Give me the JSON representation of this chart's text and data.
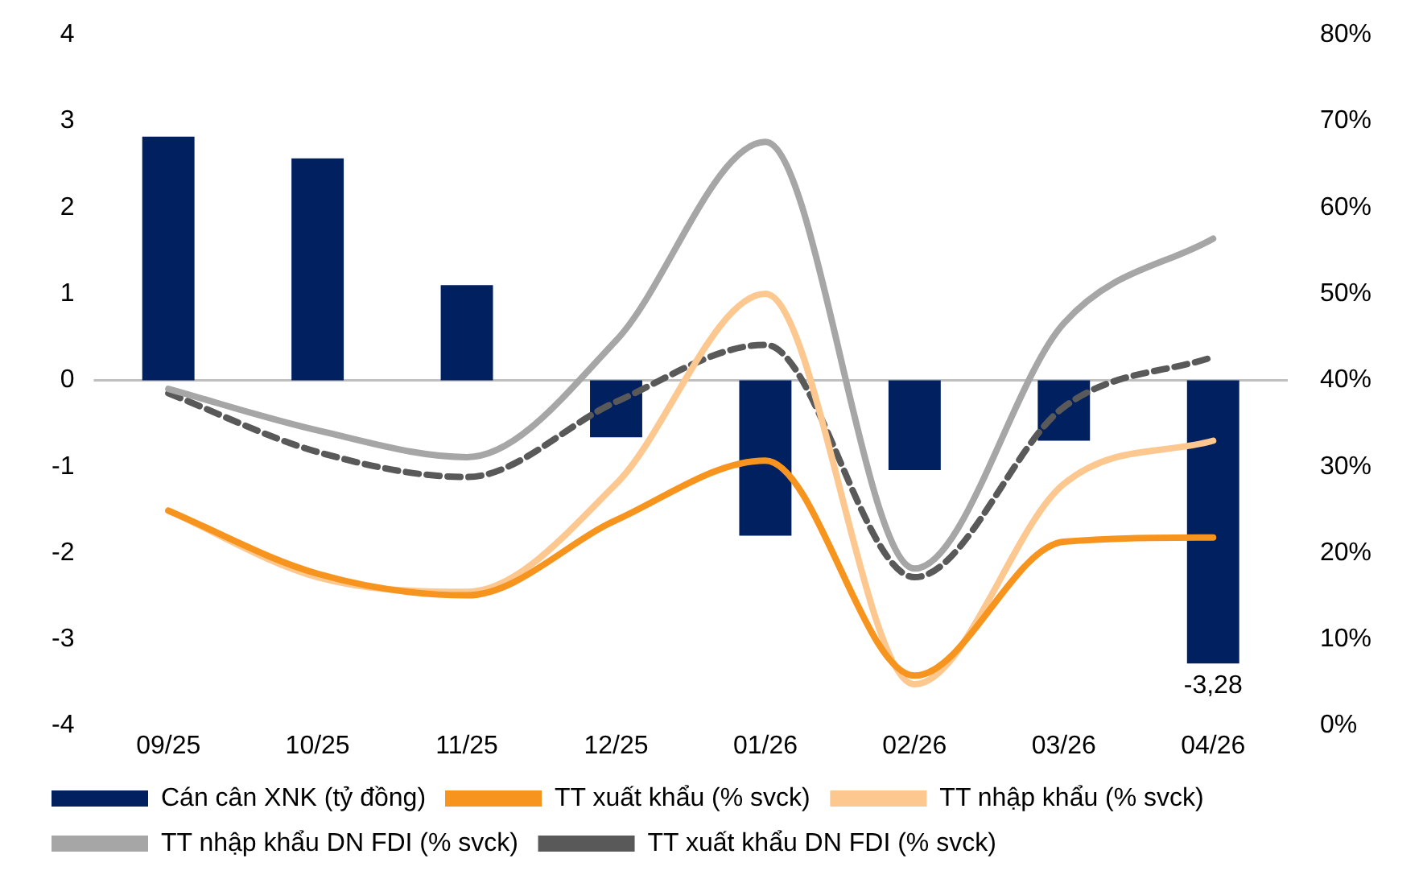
{
  "chart_data": {
    "type": "bar",
    "categories": [
      "09/25",
      "10/25",
      "11/25",
      "12/25",
      "01/26",
      "02/26",
      "03/26",
      "04/26"
    ],
    "series": [
      {
        "name": "Cán cân XNK (tỷ đồng)",
        "color": "#002060",
        "values": [
          2.82,
          2.57,
          1.1,
          -0.66,
          -1.8,
          -1.04,
          -0.7,
          -3.28
        ],
        "value_labels": [
          null,
          null,
          null,
          null,
          null,
          null,
          null,
          "-3,28"
        ]
      },
      {
        "name": "TT xuất khẩu (% svck)",
        "type": "line",
        "axis": "y2",
        "color": "#f7941d",
        "line_style": "solid",
        "values": [
          24.9,
          17.6,
          15.1,
          23.8,
          30.7,
          5.8,
          21.3,
          21.8
        ]
      },
      {
        "name": "TT nhập khẩu (% svck)",
        "type": "line",
        "axis": "y2",
        "color": "#fcc88f",
        "line_style": "solid",
        "values": [
          24.9,
          17.2,
          15.5,
          28,
          50,
          4.8,
          28,
          33
        ]
      },
      {
        "name": "TT nhập khẩu DN FDI (% svck)",
        "type": "line",
        "axis": "y2",
        "color": "#a6a6a6",
        "line_style": "solid",
        "values": [
          39,
          34.2,
          31.1,
          44.6,
          67.6,
          18.2,
          46.6,
          56.4
        ]
      },
      {
        "name": "TT xuất khẩu DN FDI (% svck)",
        "type": "line",
        "axis": "y2",
        "color": "#595959",
        "line_style": "dashed",
        "values": [
          38.5,
          31.7,
          28.8,
          37.5,
          44.1,
          17.2,
          36.9,
          42.7
        ]
      }
    ],
    "ylim": [
      -4,
      4
    ],
    "yticks": [
      -4,
      -3,
      -2,
      -1,
      0,
      1,
      2,
      3,
      4
    ],
    "y2lim": [
      0,
      80
    ],
    "y2ticks": [
      {
        "value": 0,
        "label": "0%"
      },
      {
        "value": 10,
        "label": "10%"
      },
      {
        "value": 20,
        "label": "20%"
      },
      {
        "value": 30,
        "label": "30%"
      },
      {
        "value": 40,
        "label": "40%"
      },
      {
        "value": 50,
        "label": "50%"
      },
      {
        "value": 60,
        "label": "60%"
      },
      {
        "value": 70,
        "label": "70%"
      },
      {
        "value": 80,
        "label": "80%"
      }
    ],
    "ref_lines": [
      {
        "axis": "y",
        "value": 0,
        "color": "#bfbfbf"
      }
    ],
    "legend": "bottom",
    "grid": false,
    "marker": "none"
  }
}
